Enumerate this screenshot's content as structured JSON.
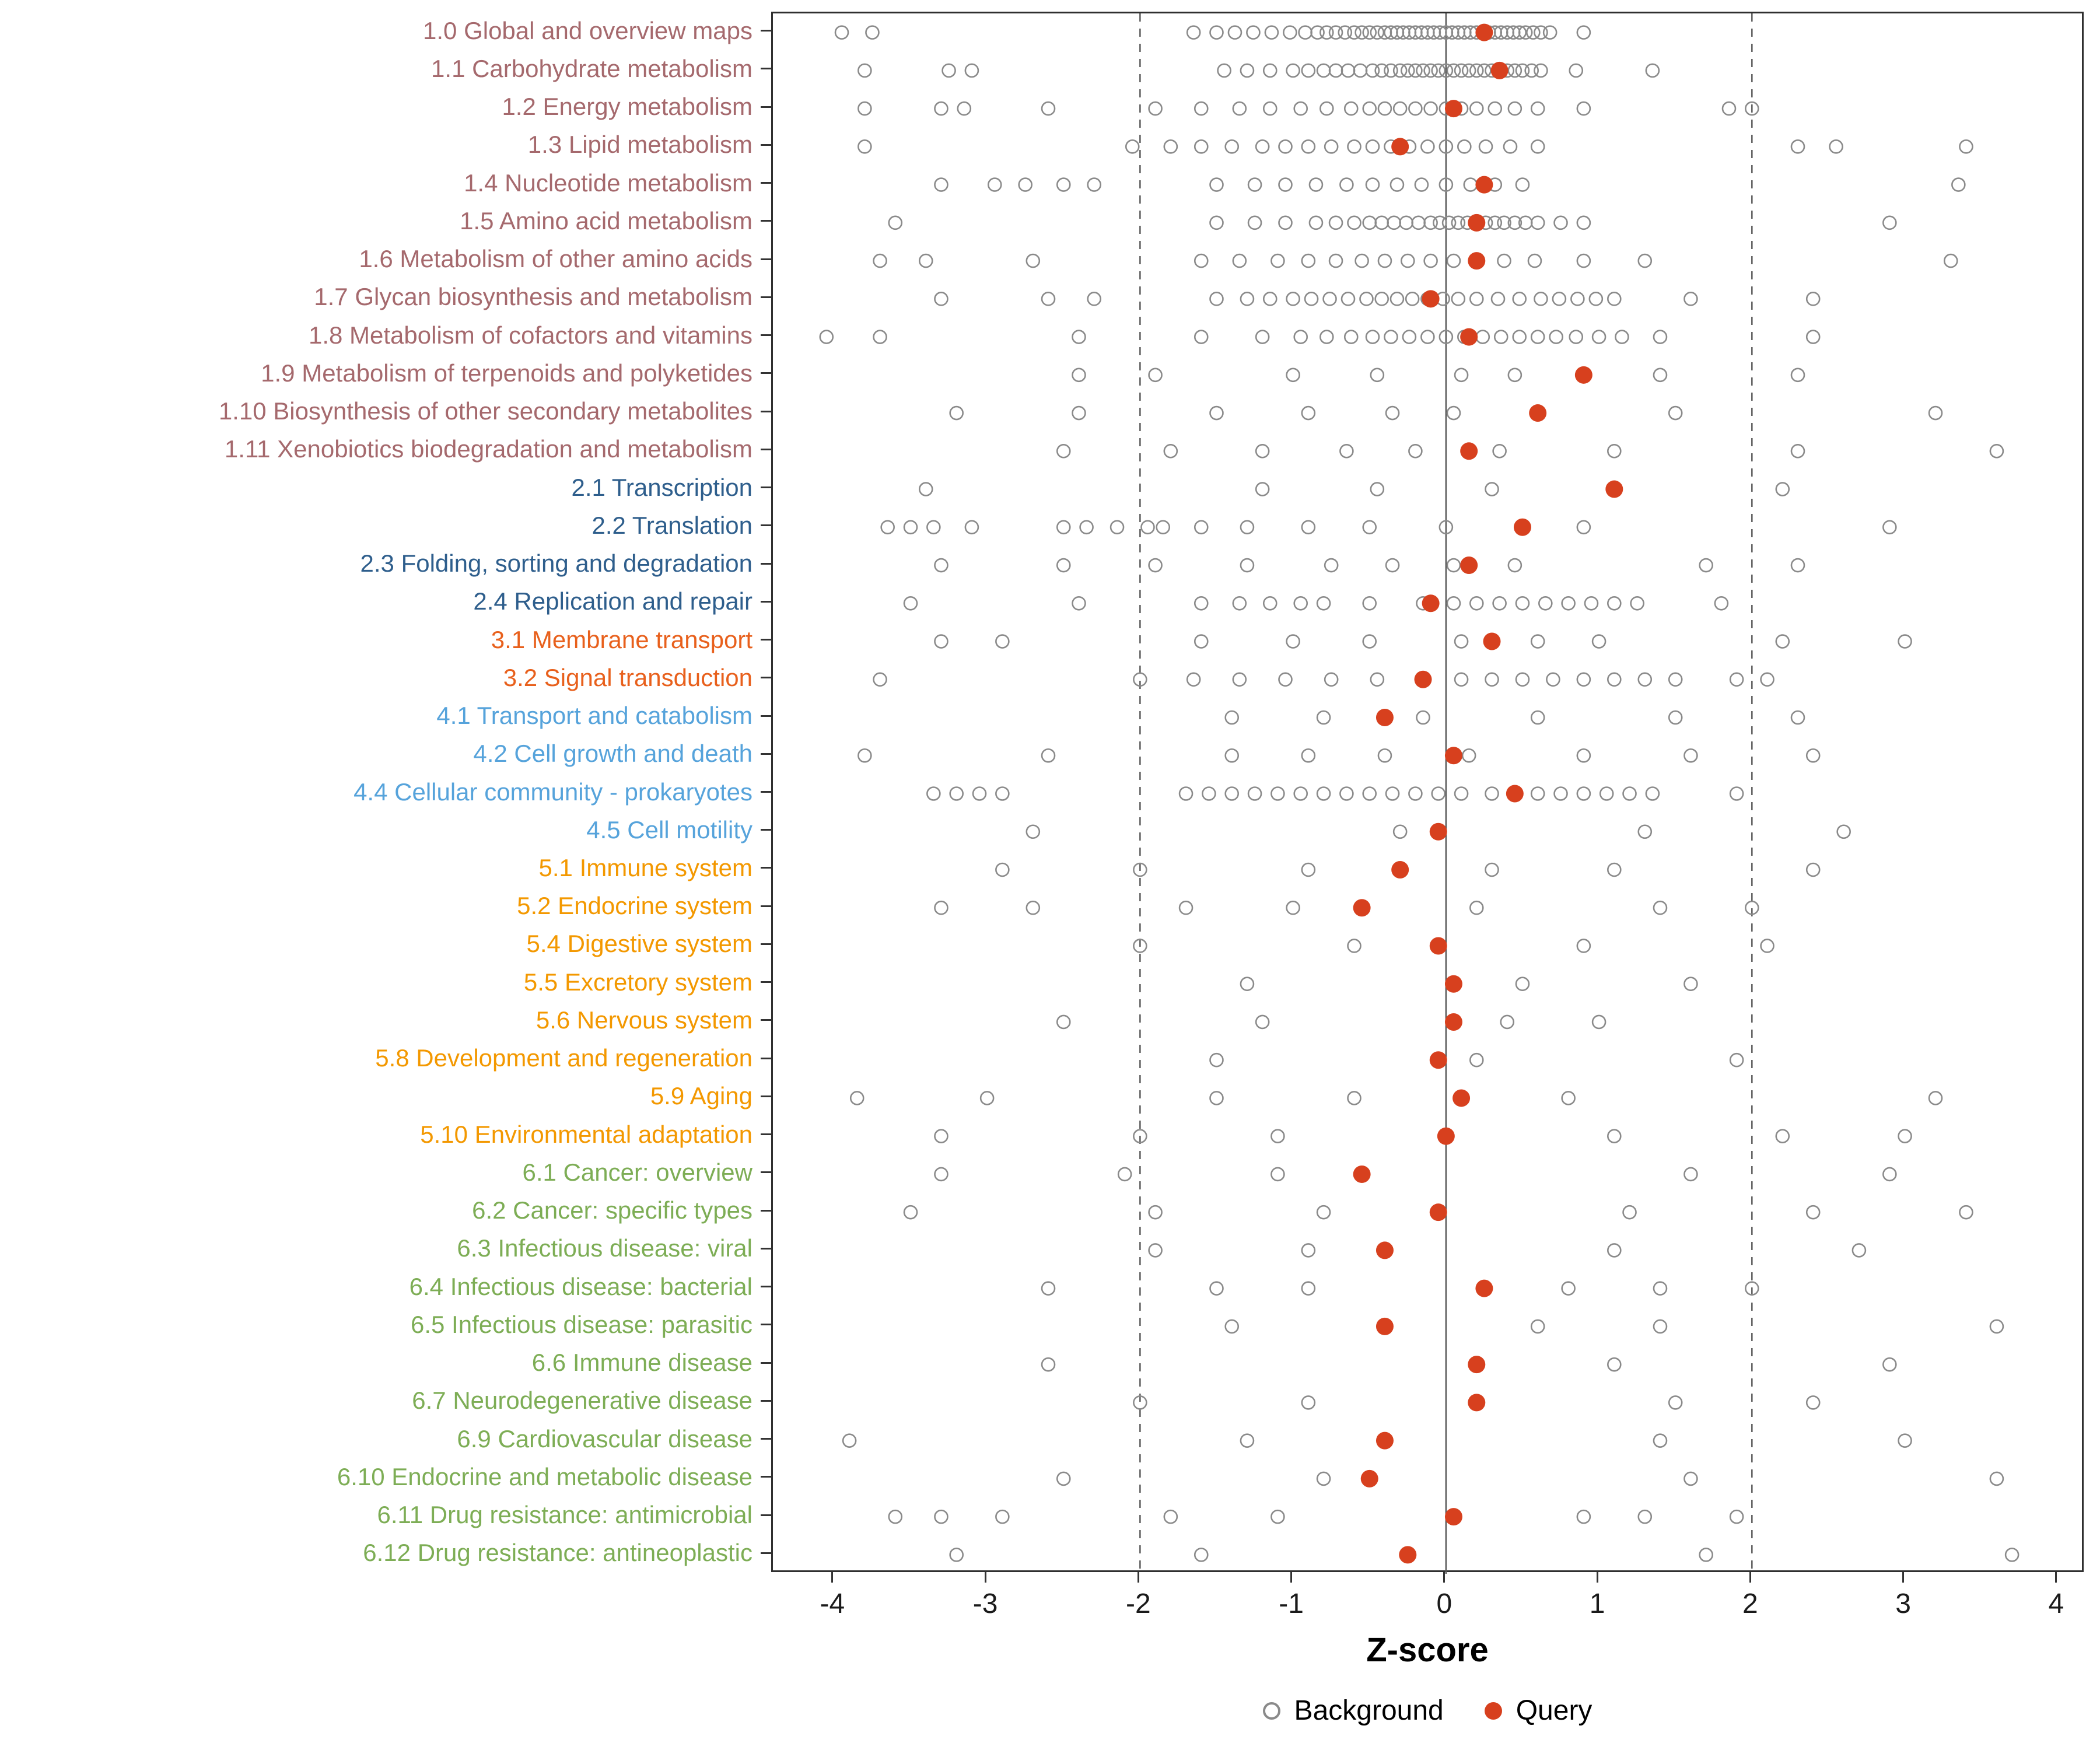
{
  "chart_data": {
    "type": "scatter",
    "title": "",
    "xlabel": "Z-score",
    "xlim": [
      -4.4,
      4.18
    ],
    "x_ticks": [
      -4,
      -3,
      -2,
      -1,
      0,
      1,
      2,
      3,
      4
    ],
    "grid": false,
    "reference_lines": {
      "solid": [
        0
      ],
      "dashed": [
        -2,
        2
      ]
    },
    "legend_position": "bottom",
    "legend": [
      {
        "label": "Background",
        "style": "open",
        "color": "#8a8a8a"
      },
      {
        "label": "Query",
        "style": "filled",
        "color": "#d7401e"
      }
    ],
    "group_colors": {
      "1": "#a5696d",
      "2": "#2e5e8c",
      "3": "#e8601c",
      "4": "#56a3db",
      "5": "#f39800",
      "6": "#7dad55"
    },
    "rows": [
      {
        "label": "1.0 Global and overview maps",
        "group": "1",
        "query": 0.25,
        "background": [
          -3.95,
          -3.75,
          -1.65,
          -1.5,
          -1.38,
          -1.26,
          -1.14,
          -1.02,
          -0.92,
          -0.84,
          -0.78,
          -0.72,
          -0.66,
          -0.6,
          -0.55,
          -0.5,
          -0.45,
          -0.4,
          -0.36,
          -0.32,
          -0.28,
          -0.24,
          -0.2,
          -0.16,
          -0.12,
          -0.08,
          -0.04,
          0,
          0.04,
          0.08,
          0.12,
          0.16,
          0.2,
          0.24,
          0.28,
          0.32,
          0.36,
          0.4,
          0.44,
          0.48,
          0.52,
          0.57,
          0.62,
          0.68,
          0.9
        ]
      },
      {
        "label": "1.1 Carbohydrate metabolism",
        "group": "1",
        "query": 0.35,
        "background": [
          -3.8,
          -3.25,
          -3.1,
          -1.45,
          -1.3,
          -1.15,
          -1.0,
          -0.9,
          -0.8,
          -0.72,
          -0.64,
          -0.56,
          -0.48,
          -0.42,
          -0.36,
          -0.3,
          -0.25,
          -0.2,
          -0.15,
          -0.1,
          -0.05,
          0,
          0.05,
          0.1,
          0.15,
          0.2,
          0.25,
          0.3,
          0.35,
          0.4,
          0.45,
          0.5,
          0.56,
          0.62,
          0.85,
          1.35
        ]
      },
      {
        "label": "1.2 Energy metabolism",
        "group": "1",
        "query": 0.05,
        "background": [
          -3.8,
          -3.3,
          -3.15,
          -2.6,
          -1.9,
          -1.6,
          -1.35,
          -1.15,
          -0.95,
          -0.78,
          -0.62,
          -0.5,
          -0.4,
          -0.3,
          -0.2,
          -0.1,
          0,
          0.1,
          0.2,
          0.32,
          0.45,
          0.6,
          0.9,
          1.85,
          2.0
        ]
      },
      {
        "label": "1.3 Lipid metabolism",
        "group": "1",
        "query": -0.3,
        "background": [
          -3.8,
          -2.05,
          -1.8,
          -1.6,
          -1.4,
          -1.2,
          -1.05,
          -0.9,
          -0.75,
          -0.6,
          -0.48,
          -0.36,
          -0.24,
          -0.12,
          0,
          0.12,
          0.26,
          0.42,
          0.6,
          2.3,
          2.55,
          3.4
        ]
      },
      {
        "label": "1.4 Nucleotide metabolism",
        "group": "1",
        "query": 0.25,
        "background": [
          -3.3,
          -2.95,
          -2.75,
          -2.5,
          -2.3,
          -1.5,
          -1.25,
          -1.05,
          -0.85,
          -0.65,
          -0.48,
          -0.32,
          -0.16,
          0,
          0.16,
          0.32,
          0.5,
          3.35
        ]
      },
      {
        "label": "1.5 Amino acid metabolism",
        "group": "1",
        "query": 0.2,
        "background": [
          -3.6,
          -1.5,
          -1.25,
          -1.05,
          -0.85,
          -0.72,
          -0.6,
          -0.5,
          -0.42,
          -0.34,
          -0.26,
          -0.18,
          -0.1,
          -0.04,
          0.02,
          0.08,
          0.14,
          0.2,
          0.26,
          0.32,
          0.38,
          0.45,
          0.52,
          0.6,
          0.75,
          0.9,
          2.9
        ]
      },
      {
        "label": "1.6 Metabolism of other amino acids",
        "group": "1",
        "query": 0.2,
        "background": [
          -3.7,
          -3.4,
          -2.7,
          -1.6,
          -1.35,
          -1.1,
          -0.9,
          -0.72,
          -0.55,
          -0.4,
          -0.25,
          -0.1,
          0.05,
          0.2,
          0.38,
          0.58,
          0.9,
          1.3,
          3.3
        ]
      },
      {
        "label": "1.7 Glycan biosynthesis and metabolism",
        "group": "1",
        "query": -0.1,
        "background": [
          -3.3,
          -2.6,
          -2.3,
          -1.5,
          -1.3,
          -1.15,
          -1.0,
          -0.88,
          -0.76,
          -0.64,
          -0.52,
          -0.42,
          -0.32,
          -0.22,
          -0.12,
          -0.02,
          0.08,
          0.2,
          0.34,
          0.48,
          0.62,
          0.74,
          0.86,
          0.98,
          1.1,
          1.6,
          2.4
        ]
      },
      {
        "label": "1.8 Metabolism of cofactors and vitamins",
        "group": "1",
        "query": 0.15,
        "background": [
          -4.05,
          -3.7,
          -2.4,
          -1.6,
          -1.2,
          -0.95,
          -0.78,
          -0.62,
          -0.48,
          -0.36,
          -0.24,
          -0.12,
          0,
          0.12,
          0.24,
          0.36,
          0.48,
          0.6,
          0.72,
          0.85,
          1.0,
          1.15,
          1.4,
          2.4
        ]
      },
      {
        "label": "1.9 Metabolism of terpenoids and polyketides",
        "group": "1",
        "query": 0.9,
        "background": [
          -2.4,
          -1.9,
          -1.0,
          -0.45,
          0.1,
          0.45,
          1.4,
          2.3
        ]
      },
      {
        "label": "1.10 Biosynthesis of other secondary metabolites",
        "group": "1",
        "query": 0.6,
        "background": [
          -3.2,
          -2.4,
          -1.5,
          -0.9,
          -0.35,
          0.05,
          1.5,
          3.2
        ]
      },
      {
        "label": "1.11 Xenobiotics biodegradation and metabolism",
        "group": "1",
        "query": 0.15,
        "background": [
          -2.5,
          -1.8,
          -1.2,
          -0.65,
          -0.2,
          0.35,
          1.1,
          2.3,
          3.6
        ]
      },
      {
        "label": "2.1 Transcription",
        "group": "2",
        "query": 1.1,
        "background": [
          -3.4,
          -1.2,
          -0.45,
          0.3,
          2.2
        ]
      },
      {
        "label": "2.2 Translation",
        "group": "2",
        "query": 0.5,
        "background": [
          -3.65,
          -3.5,
          -3.35,
          -3.1,
          -2.5,
          -2.35,
          -2.15,
          -1.95,
          -1.85,
          -1.6,
          -1.3,
          -0.9,
          -0.5,
          0,
          0.9,
          2.9
        ]
      },
      {
        "label": "2.3 Folding, sorting and degradation",
        "group": "2",
        "query": 0.15,
        "background": [
          -3.3,
          -2.5,
          -1.9,
          -1.3,
          -0.75,
          -0.35,
          0.05,
          0.45,
          1.7,
          2.3
        ]
      },
      {
        "label": "2.4 Replication and repair",
        "group": "2",
        "query": -0.1,
        "background": [
          -3.5,
          -2.4,
          -1.6,
          -1.35,
          -1.15,
          -0.95,
          -0.8,
          -0.5,
          -0.15,
          0.05,
          0.2,
          0.35,
          0.5,
          0.65,
          0.8,
          0.95,
          1.1,
          1.25,
          1.8
        ]
      },
      {
        "label": "3.1 Membrane transport",
        "group": "3",
        "query": 0.3,
        "background": [
          -3.3,
          -2.9,
          -1.6,
          -1.0,
          -0.5,
          0.1,
          0.6,
          1.0,
          2.2,
          3.0
        ]
      },
      {
        "label": "3.2 Signal transduction",
        "group": "3",
        "query": -0.15,
        "background": [
          -3.7,
          -2.0,
          -1.65,
          -1.35,
          -1.05,
          -0.75,
          -0.45,
          -0.15,
          0.1,
          0.3,
          0.5,
          0.7,
          0.9,
          1.1,
          1.3,
          1.5,
          1.9,
          2.1
        ]
      },
      {
        "label": "4.1 Transport and catabolism",
        "group": "4",
        "query": -0.4,
        "background": [
          -1.4,
          -0.8,
          -0.15,
          0.6,
          1.5,
          2.3
        ]
      },
      {
        "label": "4.2 Cell growth and death",
        "group": "4",
        "query": 0.05,
        "background": [
          -3.8,
          -2.6,
          -1.4,
          -0.9,
          -0.4,
          0.15,
          0.9,
          1.6,
          2.4
        ]
      },
      {
        "label": "4.4 Cellular community - prokaryotes",
        "group": "4",
        "query": 0.45,
        "background": [
          -3.35,
          -3.2,
          -3.05,
          -2.9,
          -1.7,
          -1.55,
          -1.4,
          -1.25,
          -1.1,
          -0.95,
          -0.8,
          -0.65,
          -0.5,
          -0.35,
          -0.2,
          -0.05,
          0.1,
          0.3,
          0.6,
          0.75,
          0.9,
          1.05,
          1.2,
          1.35,
          1.9
        ]
      },
      {
        "label": "4.5 Cell motility",
        "group": "4",
        "query": -0.05,
        "background": [
          -2.7,
          -0.3,
          1.3,
          2.6
        ]
      },
      {
        "label": "5.1 Immune system",
        "group": "5",
        "query": -0.3,
        "background": [
          -2.9,
          -2.0,
          -0.9,
          0.3,
          1.1,
          2.4
        ]
      },
      {
        "label": "5.2 Endocrine system",
        "group": "5",
        "query": -0.55,
        "background": [
          -3.3,
          -2.7,
          -1.7,
          -1.0,
          0.2,
          1.4,
          2.0
        ]
      },
      {
        "label": "5.4 Digestive system",
        "group": "5",
        "query": -0.05,
        "background": [
          -2.0,
          -0.6,
          0.9,
          2.1
        ]
      },
      {
        "label": "5.5 Excretory system",
        "group": "5",
        "query": 0.05,
        "background": [
          -1.3,
          0.5,
          1.6
        ]
      },
      {
        "label": "5.6 Nervous system",
        "group": "5",
        "query": 0.05,
        "background": [
          -2.5,
          -1.2,
          0.4,
          1.0
        ]
      },
      {
        "label": "5.8 Development and regeneration",
        "group": "5",
        "query": -0.05,
        "background": [
          -1.5,
          0.2,
          1.9
        ]
      },
      {
        "label": "5.9 Aging",
        "group": "5",
        "query": 0.1,
        "background": [
          -3.85,
          -3.0,
          -1.5,
          -0.6,
          0.8,
          3.2
        ]
      },
      {
        "label": "5.10 Environmental adaptation",
        "group": "5",
        "query": 0.0,
        "background": [
          -3.3,
          -2.0,
          -1.1,
          1.1,
          2.2,
          3.0
        ]
      },
      {
        "label": "6.1 Cancer: overview",
        "group": "6",
        "query": -0.55,
        "background": [
          -3.3,
          -2.1,
          -1.1,
          1.6,
          2.9
        ]
      },
      {
        "label": "6.2 Cancer: specific types",
        "group": "6",
        "query": -0.05,
        "background": [
          -3.5,
          -1.9,
          -0.8,
          1.2,
          2.4,
          3.4
        ]
      },
      {
        "label": "6.3 Infectious disease: viral",
        "group": "6",
        "query": -0.4,
        "background": [
          -1.9,
          -0.9,
          1.1,
          2.7
        ]
      },
      {
        "label": "6.4 Infectious disease: bacterial",
        "group": "6",
        "query": 0.25,
        "background": [
          -2.6,
          -1.5,
          -0.9,
          0.8,
          1.4,
          2.0
        ]
      },
      {
        "label": "6.5 Infectious disease: parasitic",
        "group": "6",
        "query": -0.4,
        "background": [
          -1.4,
          0.6,
          1.4,
          3.6
        ]
      },
      {
        "label": "6.6 Immune disease",
        "group": "6",
        "query": 0.2,
        "background": [
          -2.6,
          1.1,
          2.9
        ]
      },
      {
        "label": "6.7 Neurodegenerative disease",
        "group": "6",
        "query": 0.2,
        "background": [
          -2.0,
          -0.9,
          1.5,
          2.4
        ]
      },
      {
        "label": "6.9 Cardiovascular disease",
        "group": "6",
        "query": -0.4,
        "background": [
          -3.9,
          -1.3,
          1.4,
          3.0
        ]
      },
      {
        "label": "6.10 Endocrine and metabolic disease",
        "group": "6",
        "query": -0.5,
        "background": [
          -2.5,
          -0.8,
          1.6,
          3.6
        ]
      },
      {
        "label": "6.11 Drug resistance: antimicrobial",
        "group": "6",
        "query": 0.05,
        "background": [
          -3.6,
          -3.3,
          -2.9,
          -1.8,
          -1.1,
          0.9,
          1.3,
          1.9
        ]
      },
      {
        "label": "6.12 Drug resistance: antineoplastic",
        "group": "6",
        "query": -0.25,
        "background": [
          -3.2,
          -1.6,
          1.7,
          3.7
        ]
      }
    ],
    "style": {
      "background_point_color": "#8a8a8a",
      "query_point_color": "#d7401e",
      "reference_line_color": "#5a5a5a",
      "panel_border_color": "#2f2f2f"
    }
  },
  "axis": {
    "title": "Z-score"
  },
  "legend": {
    "background_label": "Background",
    "query_label": "Query"
  }
}
